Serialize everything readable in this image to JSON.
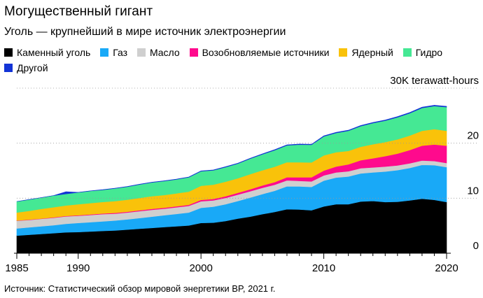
{
  "header": {
    "title": "Могущественный гигант",
    "subtitle": "Уголь — крупнейший в мире источник электроэнергии"
  },
  "legend": [
    {
      "name": "Каменный уголь",
      "color": "#000000"
    },
    {
      "name": "Газ",
      "color": "#19a9f7"
    },
    {
      "name": "Масло",
      "color": "#cfcfcf"
    },
    {
      "name": "Возобновляемые источники",
      "color": "#ff0a8d"
    },
    {
      "name": "Ядерный",
      "color": "#f9c20a"
    },
    {
      "name": "Гидро",
      "color": "#45e894"
    },
    {
      "name": "Другой",
      "color": "#1334d6"
    }
  ],
  "source": "Источник: Статистический обзор мировой энергетики BP, 2021 г.",
  "chart_data": {
    "type": "area",
    "stacked": true,
    "unit_label": "30K terawatt-hours",
    "y_ticks": [
      {
        "value": 0,
        "label": "0"
      },
      {
        "value": 10000,
        "label": "10"
      },
      {
        "value": 20000,
        "label": "20"
      },
      {
        "value": 30000,
        "label": "30K terawatt-hours"
      }
    ],
    "ylim": [
      0,
      30000
    ],
    "x_ticks": [
      {
        "value": 1985,
        "label": "1985"
      },
      {
        "value": 1990,
        "label": "1990"
      },
      {
        "value": 2000,
        "label": "2000"
      },
      {
        "value": 2010,
        "label": "2010"
      },
      {
        "value": 2020,
        "label": "2020"
      }
    ],
    "xlim": [
      1985,
      2020
    ],
    "x": [
      1985,
      1986,
      1987,
      1988,
      1989,
      1990,
      1991,
      1992,
      1993,
      1994,
      1995,
      1996,
      1997,
      1998,
      1999,
      2000,
      2001,
      2002,
      2003,
      2004,
      2005,
      2006,
      2007,
      2008,
      2009,
      2010,
      2011,
      2012,
      2013,
      2014,
      2015,
      2016,
      2017,
      2018,
      2019,
      2020
    ],
    "series": [
      {
        "name": "Каменный уголь",
        "color": "#000000",
        "values": [
          3200,
          3350,
          3500,
          3650,
          3800,
          3850,
          3950,
          4050,
          4150,
          4300,
          4450,
          4600,
          4750,
          4900,
          5050,
          5500,
          5550,
          5850,
          6300,
          6650,
          7100,
          7500,
          8000,
          7950,
          7800,
          8500,
          8900,
          8900,
          9400,
          9500,
          9300,
          9350,
          9600,
          9900,
          9700,
          9300
        ]
      },
      {
        "name": "Газ",
        "color": "#19a9f7",
        "values": [
          1300,
          1350,
          1400,
          1450,
          1550,
          1650,
          1700,
          1750,
          1800,
          1850,
          1950,
          2050,
          2150,
          2250,
          2350,
          2750,
          2900,
          3050,
          3200,
          3450,
          3650,
          3850,
          4150,
          4200,
          4250,
          4700,
          4850,
          5050,
          5100,
          5200,
          5550,
          5750,
          5900,
          6150,
          6300,
          6350
        ]
      },
      {
        "name": "Масло",
        "color": "#cfcfcf",
        "values": [
          1400,
          1350,
          1350,
          1350,
          1350,
          1300,
          1300,
          1300,
          1250,
          1250,
          1250,
          1250,
          1200,
          1200,
          1200,
          1200,
          1150,
          1150,
          1150,
          1150,
          1150,
          1100,
          1100,
          1000,
          1000,
          950,
          950,
          950,
          950,
          900,
          900,
          850,
          850,
          800,
          750,
          750
        ]
      },
      {
        "name": "Возобновляемые источники",
        "color": "#ff0a8d",
        "values": [
          50,
          55,
          60,
          70,
          80,
          100,
          110,
          120,
          130,
          140,
          150,
          160,
          170,
          180,
          200,
          250,
          270,
          300,
          330,
          370,
          420,
          480,
          550,
          640,
          750,
          880,
          1050,
          1250,
          1450,
          1650,
          1900,
          2150,
          2400,
          2700,
          3000,
          3150
        ]
      },
      {
        "name": "Ядерный",
        "color": "#f9c20a",
        "values": [
          1450,
          1600,
          1750,
          1850,
          1900,
          2000,
          2050,
          2100,
          2150,
          2200,
          2250,
          2300,
          2300,
          2350,
          2400,
          2550,
          2600,
          2650,
          2650,
          2750,
          2750,
          2800,
          2750,
          2750,
          2700,
          2750,
          2600,
          2450,
          2450,
          2550,
          2550,
          2600,
          2650,
          2700,
          2800,
          2700
        ]
      },
      {
        "name": "Гидро",
        "color": "#45e894",
        "values": [
          2000,
          2050,
          2050,
          2100,
          2100,
          2150,
          2200,
          2200,
          2300,
          2350,
          2450,
          2500,
          2550,
          2550,
          2600,
          2650,
          2600,
          2650,
          2650,
          2800,
          2900,
          3000,
          3050,
          3200,
          3200,
          3450,
          3500,
          3650,
          3750,
          3850,
          3900,
          4000,
          4050,
          4150,
          4200,
          4300
        ]
      },
      {
        "name": "Другой",
        "color": "#1334d6",
        "values": [
          0,
          5,
          10,
          15,
          400,
          20,
          30,
          30,
          40,
          40,
          50,
          50,
          50,
          50,
          60,
          60,
          70,
          70,
          80,
          80,
          90,
          90,
          100,
          100,
          100,
          100,
          110,
          110,
          110,
          120,
          120,
          130,
          130,
          140,
          150,
          150
        ]
      }
    ]
  }
}
